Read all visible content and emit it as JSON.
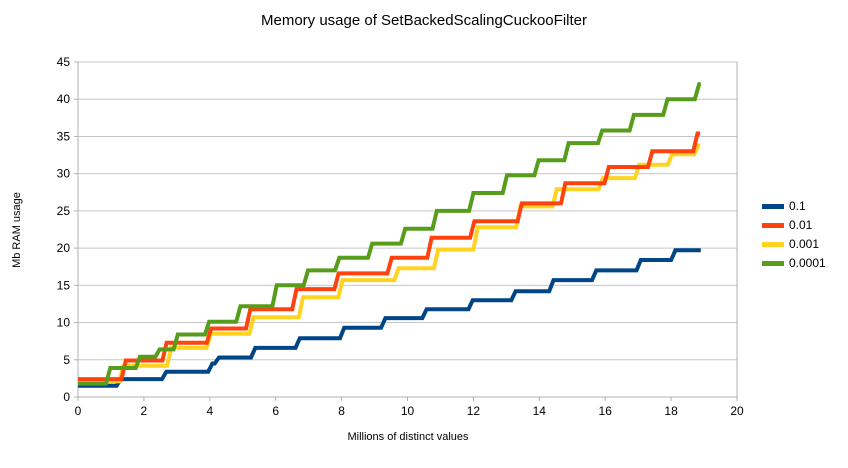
{
  "chart_data": {
    "type": "line",
    "step": true,
    "title": "Memory usage of SetBackedScalingCuckooFilter",
    "xlabel": "Millions of distinct values",
    "ylabel": "Mb RAM usage",
    "xlim": [
      0,
      20
    ],
    "ylim": [
      0,
      45
    ],
    "x_ticks": [
      0,
      2,
      4,
      6,
      8,
      10,
      12,
      14,
      16,
      18,
      20
    ],
    "y_ticks": [
      0,
      5,
      10,
      15,
      20,
      25,
      30,
      35,
      40,
      45
    ],
    "grid": "horizontal",
    "legend_position": "right",
    "series": [
      {
        "name": "0.1",
        "color": "#004586",
        "x_end": 18.9,
        "points": [
          [
            0,
            1.5
          ],
          [
            1.17,
            2.4
          ],
          [
            2.55,
            3.4
          ],
          [
            3.95,
            4.5
          ],
          [
            4.15,
            5.3
          ],
          [
            5.25,
            6.6
          ],
          [
            6.6,
            7.9
          ],
          [
            7.95,
            9.3
          ],
          [
            9.2,
            10.6
          ],
          [
            10.45,
            11.8
          ],
          [
            11.85,
            13.0
          ],
          [
            13.15,
            14.2
          ],
          [
            14.3,
            15.7
          ],
          [
            15.6,
            17.0
          ],
          [
            16.95,
            18.4
          ],
          [
            18.0,
            19.7
          ]
        ]
      },
      {
        "name": "0.01",
        "color": "#FF420E",
        "x_end": 18.88,
        "points": [
          [
            0,
            2.4
          ],
          [
            1.32,
            4.9
          ],
          [
            2.56,
            7.3
          ],
          [
            3.91,
            9.2
          ],
          [
            5.1,
            11.8
          ],
          [
            6.5,
            14.5
          ],
          [
            7.78,
            16.6
          ],
          [
            9.39,
            18.7
          ],
          [
            10.6,
            21.4
          ],
          [
            11.9,
            23.6
          ],
          [
            13.34,
            26.0
          ],
          [
            14.66,
            28.7
          ],
          [
            15.98,
            30.9
          ],
          [
            17.3,
            33.0
          ],
          [
            18.67,
            35.4
          ]
        ]
      },
      {
        "name": "0.001",
        "color": "#FFD320",
        "x_end": 18.88,
        "points": [
          [
            0,
            2.1
          ],
          [
            1.25,
            4.2
          ],
          [
            2.7,
            6.6
          ],
          [
            3.9,
            8.5
          ],
          [
            5.2,
            10.7
          ],
          [
            6.7,
            13.4
          ],
          [
            7.9,
            15.7
          ],
          [
            9.6,
            17.3
          ],
          [
            10.8,
            19.8
          ],
          [
            12.0,
            22.8
          ],
          [
            13.3,
            25.6
          ],
          [
            14.4,
            27.9
          ],
          [
            15.8,
            29.4
          ],
          [
            16.9,
            31.2
          ],
          [
            17.9,
            32.6
          ],
          [
            18.7,
            33.8
          ]
        ]
      },
      {
        "name": "0.0001",
        "color": "#579D1C",
        "x_end": 18.9,
        "points": [
          [
            0,
            1.8
          ],
          [
            0.85,
            3.9
          ],
          [
            1.75,
            5.4
          ],
          [
            2.35,
            6.4
          ],
          [
            2.9,
            8.4
          ],
          [
            3.85,
            10.1
          ],
          [
            4.8,
            12.2
          ],
          [
            5.9,
            15.0
          ],
          [
            6.85,
            17.0
          ],
          [
            7.8,
            18.7
          ],
          [
            8.8,
            20.6
          ],
          [
            9.8,
            22.6
          ],
          [
            10.76,
            25.0
          ],
          [
            11.87,
            27.4
          ],
          [
            12.89,
            29.8
          ],
          [
            13.85,
            31.8
          ],
          [
            14.76,
            34.1
          ],
          [
            15.78,
            35.8
          ],
          [
            16.74,
            37.9
          ],
          [
            17.76,
            40.0
          ],
          [
            18.72,
            42.0
          ]
        ]
      }
    ]
  },
  "colors": {
    "background": "#ffffff",
    "grid": "#c6c6c6",
    "axis": "#b0b0b0",
    "tick_text": "#000000"
  }
}
